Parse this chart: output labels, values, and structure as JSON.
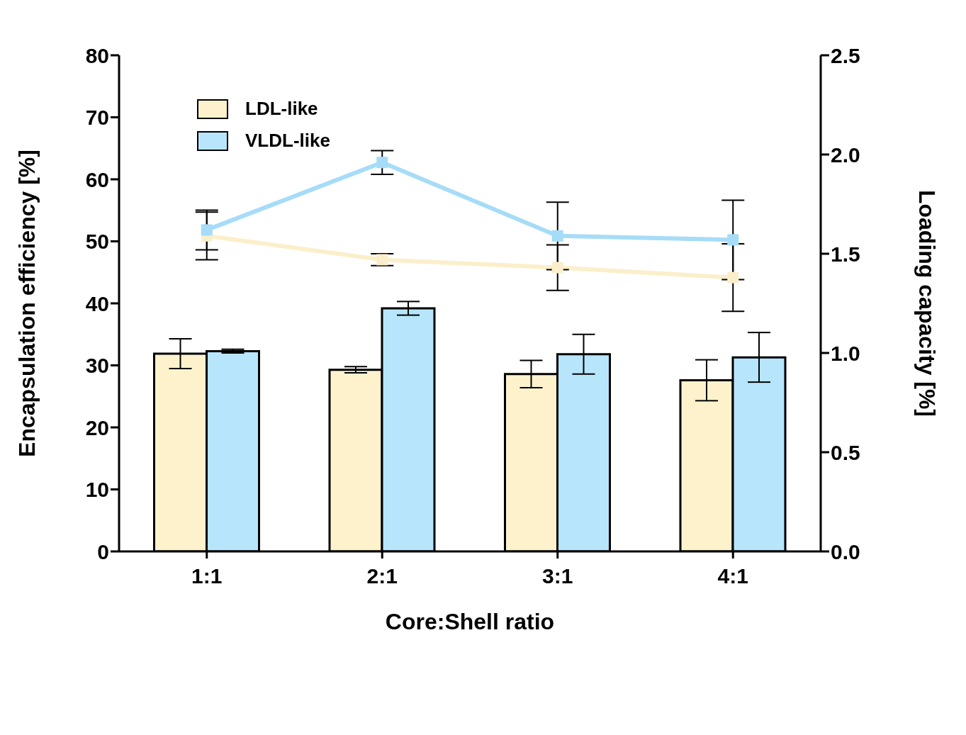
{
  "chart_data": {
    "type": "bar",
    "xlabel": "Core:Shell ratio",
    "ylabel": "Encapsulation efficiency [%]",
    "y2label": "Loading capacity [%]",
    "categories": [
      "1:1",
      "2:1",
      "3:1",
      "4:1"
    ],
    "series": [
      {
        "name": "LDL-like",
        "color": "#fdf2cc",
        "values": [
          31.9,
          29.3,
          28.6,
          27.6
        ],
        "errors": [
          2.4,
          0.5,
          2.2,
          3.3
        ]
      },
      {
        "name": "VLDL-like",
        "color": "#b7e5fb",
        "values": [
          32.3,
          39.2,
          31.8,
          31.3
        ],
        "errors": [
          0.3,
          1.1,
          3.2,
          4.0
        ]
      },
      {
        "type": "line",
        "axis": "y2",
        "color": "#fbefcb",
        "values": [
          1.59,
          1.47,
          1.43,
          1.38
        ],
        "errors": [
          0.12,
          0.03,
          0.115,
          0.17
        ]
      },
      {
        "type": "line",
        "axis": "y2",
        "color": "#a6dcf7",
        "values": [
          1.62,
          1.96,
          1.59,
          1.57
        ],
        "errors": [
          0.1,
          0.06,
          0.17,
          0.2
        ]
      }
    ],
    "ylim": [
      0,
      80
    ],
    "yticks": [
      0,
      10,
      20,
      30,
      40,
      50,
      60,
      70,
      80
    ],
    "y2lim": [
      0,
      2.5
    ],
    "y2ticks": [
      {
        "value": 0,
        "label": "0.0"
      },
      0.5,
      {
        "value": 1,
        "label": "1.0"
      },
      1.5,
      {
        "value": 2,
        "label": "2.0"
      },
      2.5
    ],
    "legend": "top left",
    "marker": "square",
    "grid": false
  }
}
